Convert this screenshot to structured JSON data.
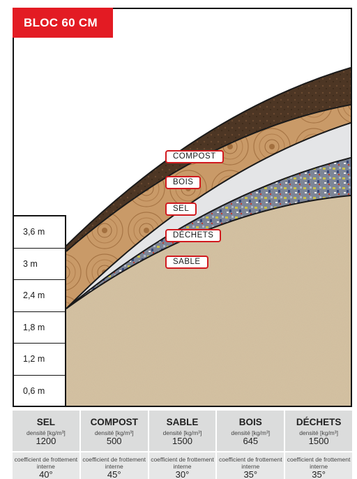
{
  "title": "BLOC 60 CM",
  "scale": [
    "3,6 m",
    "3 m",
    "2,4 m",
    "1,8 m",
    "1,2 m",
    "0,6 m"
  ],
  "layers": [
    "COMPOST",
    "BOIS",
    "SEL",
    "DÉCHETS",
    "SABLE"
  ],
  "colors": {
    "accent_red": "#e31b23",
    "sable": "#d6c3a3",
    "dechets": "#8a8f9c",
    "sel": "#e6e7e9",
    "bois": "#c9a070",
    "compost": "#4a3423"
  },
  "materials": [
    {
      "name": "SEL",
      "density_label": "densité [kg/m³]",
      "density": "1200",
      "friction_label": "coefficient de frottement interne",
      "friction": "40°"
    },
    {
      "name": "COMPOST",
      "density_label": "densité [kg/m³]",
      "density": "500",
      "friction_label": "coefficient de frottement interne",
      "friction": "45°"
    },
    {
      "name": "SABLE",
      "density_label": "densité [kg/m³]",
      "density": "1500",
      "friction_label": "coefficient de frottement interne",
      "friction": "30°"
    },
    {
      "name": "BOIS",
      "density_label": "densité [kg/m³]",
      "density": "645",
      "friction_label": "coefficient de frottement interne",
      "friction": "35°"
    },
    {
      "name": "DÉCHETS",
      "density_label": "densité [kg/m³]",
      "density": "1500",
      "friction_label": "coefficient de frottement interne",
      "friction": "35°"
    }
  ]
}
